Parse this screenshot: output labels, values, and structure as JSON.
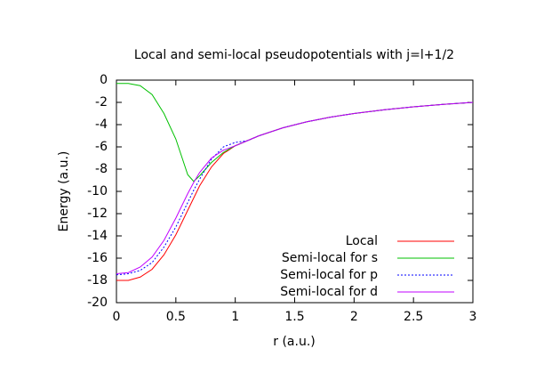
{
  "chart_data": {
    "type": "line",
    "title": "Local and semi-local pseudopotentials with j=l+1/2",
    "x_label": "r (a.u.)",
    "y_label": "Energy (a.u.)",
    "x": [
      0,
      0.1,
      0.2,
      0.3,
      0.4,
      0.5,
      0.55,
      0.6,
      0.65,
      0.7,
      0.8,
      0.9,
      1.0,
      1.1,
      1.2,
      1.4,
      1.6,
      1.8,
      2.0,
      2.25,
      2.5,
      2.75,
      3.0
    ],
    "series": [
      {
        "name": "Local",
        "color": "#ff0000",
        "dashed": false,
        "values": [
          -18.0,
          -18.0,
          -17.7,
          -17.0,
          -15.7,
          -13.9,
          -12.8,
          -11.7,
          -10.6,
          -9.5,
          -7.8,
          -6.6,
          -5.9,
          -5.45,
          -5.0,
          -4.29,
          -3.75,
          -3.33,
          -3.0,
          -2.67,
          -2.4,
          -2.18,
          -2.0
        ]
      },
      {
        "name": "Semi-local for s",
        "color": "#00c000",
        "dashed": false,
        "values": [
          -0.3,
          -0.3,
          -0.5,
          -1.3,
          -3.0,
          -5.3,
          -6.9,
          -8.5,
          -9.1,
          -8.6,
          -7.4,
          -6.5,
          -5.9,
          -5.45,
          -5.0,
          -4.29,
          -3.75,
          -3.33,
          -3.0,
          -2.67,
          -2.4,
          -2.18,
          -2.0
        ]
      },
      {
        "name": "Semi-local for p",
        "color": "#0000ff",
        "dashed": true,
        "values": [
          -17.5,
          -17.4,
          -17.1,
          -16.4,
          -15.0,
          -13.2,
          -12.1,
          -11.0,
          -9.9,
          -8.9,
          -7.1,
          -6.0,
          -5.6,
          -5.45,
          -5.0,
          -4.29,
          -3.75,
          -3.33,
          -3.0,
          -2.67,
          -2.4,
          -2.18,
          -2.0
        ]
      },
      {
        "name": "Semi-local for d",
        "color": "#c000ff",
        "dashed": false,
        "values": [
          -17.4,
          -17.3,
          -16.8,
          -15.9,
          -14.4,
          -12.4,
          -11.3,
          -10.2,
          -9.2,
          -8.3,
          -7.0,
          -6.3,
          -5.9,
          -5.45,
          -5.0,
          -4.29,
          -3.75,
          -3.33,
          -3.0,
          -2.67,
          -2.4,
          -2.18,
          -2.0
        ]
      }
    ],
    "xlim": [
      0,
      3
    ],
    "xticks": [
      0,
      0.5,
      1,
      1.5,
      2,
      2.5,
      3
    ],
    "ylim": [
      -20,
      0
    ],
    "yticks": [
      0,
      -2,
      -4,
      -6,
      -8,
      -10,
      -12,
      -14,
      -16,
      -18,
      -20
    ],
    "grid": false,
    "legend": "bottom-right"
  }
}
